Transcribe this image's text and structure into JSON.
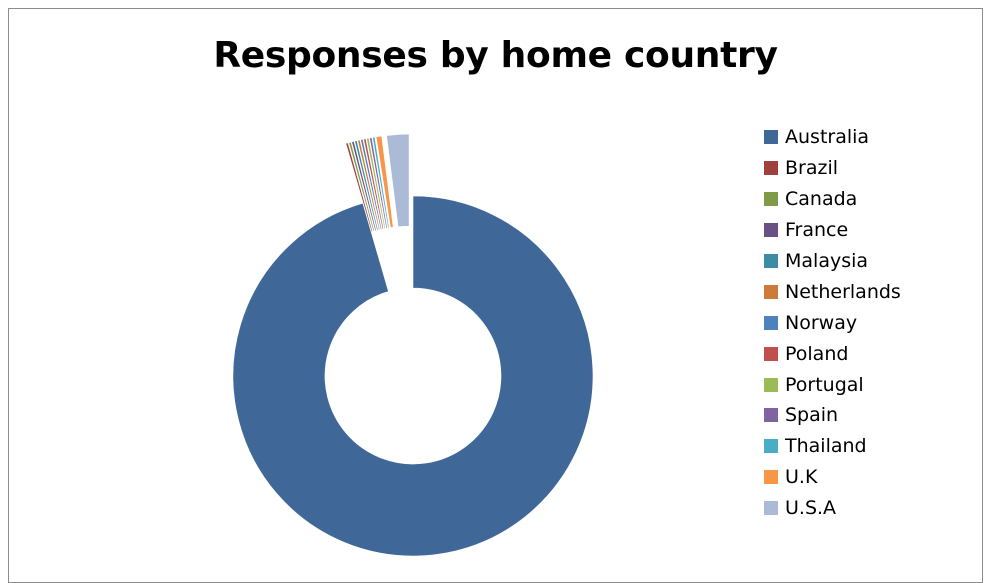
{
  "chart_data": {
    "type": "pie",
    "variant": "donut",
    "title": "Responses by home country",
    "categories": [
      "Australia",
      "Brazil",
      "Canada",
      "France",
      "Malaysia",
      "Netherlands",
      "Norway",
      "Poland",
      "Portugal",
      "Spain",
      "Thailand",
      "U.K",
      "U.S.A"
    ],
    "values": [
      955,
      2,
      2,
      2,
      2,
      2,
      2,
      2,
      2,
      2,
      2,
      5,
      20
    ],
    "value_unit": "per mille of responses (estimated from slice angles)",
    "colors": [
      "#3F6899",
      "#9E413E",
      "#7F9A48",
      "#695185",
      "#3C8DA3",
      "#CC7B38",
      "#4F81BD",
      "#C0504D",
      "#9BBB59",
      "#8064A2",
      "#4BACC6",
      "#F79646",
      "#AABAD7"
    ],
    "exploded": "all slices except Australia are pulled out from the centre",
    "legend_position": "right"
  }
}
